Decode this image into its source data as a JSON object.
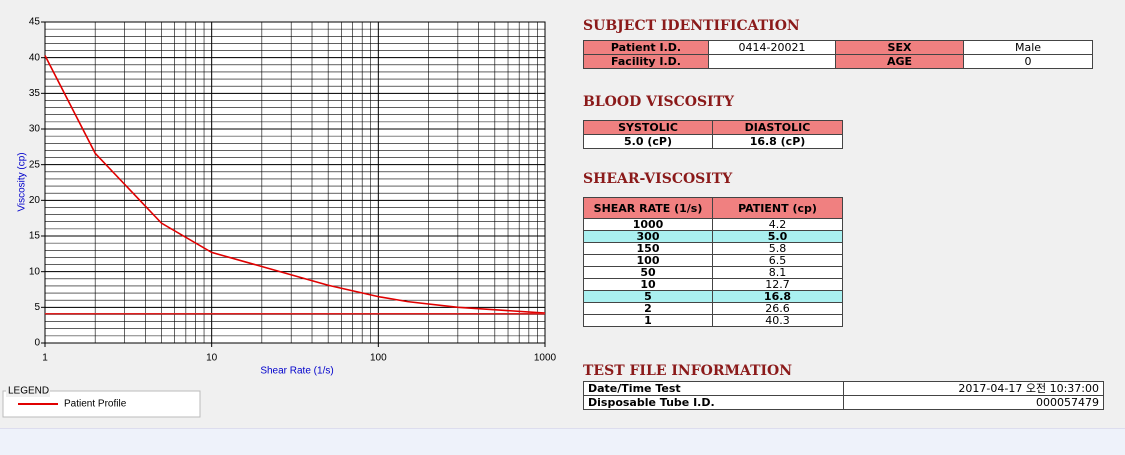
{
  "chart_data": {
    "type": "line",
    "xlabel": "Shear Rate (1/s)",
    "ylabel": "Viscosity (cp)",
    "xlim": [
      1,
      1000
    ],
    "xticks": [
      1,
      10,
      100,
      1000
    ],
    "xscale": "log",
    "ylim": [
      0,
      45
    ],
    "yticks": [
      0,
      5,
      10,
      15,
      20,
      25,
      30,
      35,
      40,
      45
    ],
    "grid": true,
    "minor_grid": true,
    "legend_title": "LEGEND",
    "series": [
      {
        "name": "Patient Profile",
        "color": "#e00000",
        "x": [
          1,
          2,
          5,
          10,
          50,
          100,
          150,
          300,
          1000
        ],
        "values": [
          40.3,
          26.6,
          16.8,
          12.7,
          8.1,
          6.5,
          5.8,
          5.0,
          4.2
        ]
      },
      {
        "color": "#e02020",
        "x": [
          1,
          1000
        ],
        "values": [
          4.1,
          4.1
        ]
      }
    ]
  },
  "subject_identification": {
    "title": "SUBJECT IDENTIFICATION",
    "rows": [
      [
        "Patient I.D.",
        "0414-20021",
        "SEX",
        "Male"
      ],
      [
        "Facility I.D.",
        null,
        "AGE",
        "0"
      ]
    ]
  },
  "blood_viscosity": {
    "title": "BLOOD VISCOSITY",
    "headers": [
      "SYSTOLIC",
      "DIASTOLIC"
    ],
    "values": [
      "5.0 (cP)",
      "16.8 (cP)"
    ]
  },
  "shear_viscosity": {
    "title": "SHEAR-VISCOSITY",
    "headers": [
      "SHEAR RATE (1/s)",
      "PATIENT (cp)"
    ],
    "rows": [
      [
        "1000",
        "4.2"
      ],
      [
        "300",
        "5.0"
      ],
      [
        "150",
        "5.8"
      ],
      [
        "100",
        "6.5"
      ],
      [
        "50",
        "8.1"
      ],
      [
        "10",
        "12.7"
      ],
      [
        "5",
        "16.8"
      ],
      [
        "2",
        "26.6"
      ],
      [
        "1",
        "40.3"
      ]
    ],
    "highlighted_rows": [
      1,
      6
    ]
  },
  "test_file_information": {
    "title": "TEST FILE INFORMATION",
    "rows": [
      [
        "Date/Time Test",
        "2017-04-17  오전 10:37:00"
      ],
      [
        "Disposable Tube I.D.",
        "000057479"
      ]
    ]
  }
}
